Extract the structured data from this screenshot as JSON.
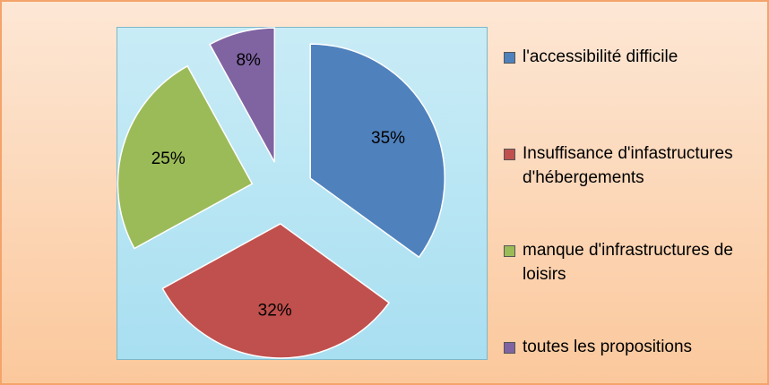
{
  "chart_data": {
    "type": "pie",
    "categories": [
      "l'accessibilité difficile",
      "Insuffisance d'infastructures d'hébergements",
      "manque d'infrastructures de loisirs",
      "toutes les propositions"
    ],
    "values": [
      35,
      32,
      25,
      8
    ],
    "value_labels": [
      "35%",
      "32%",
      "25%",
      "8%"
    ],
    "colors": [
      "#4f81bd",
      "#c0504d",
      "#9bbb59",
      "#8064a2"
    ],
    "legend": "right"
  }
}
